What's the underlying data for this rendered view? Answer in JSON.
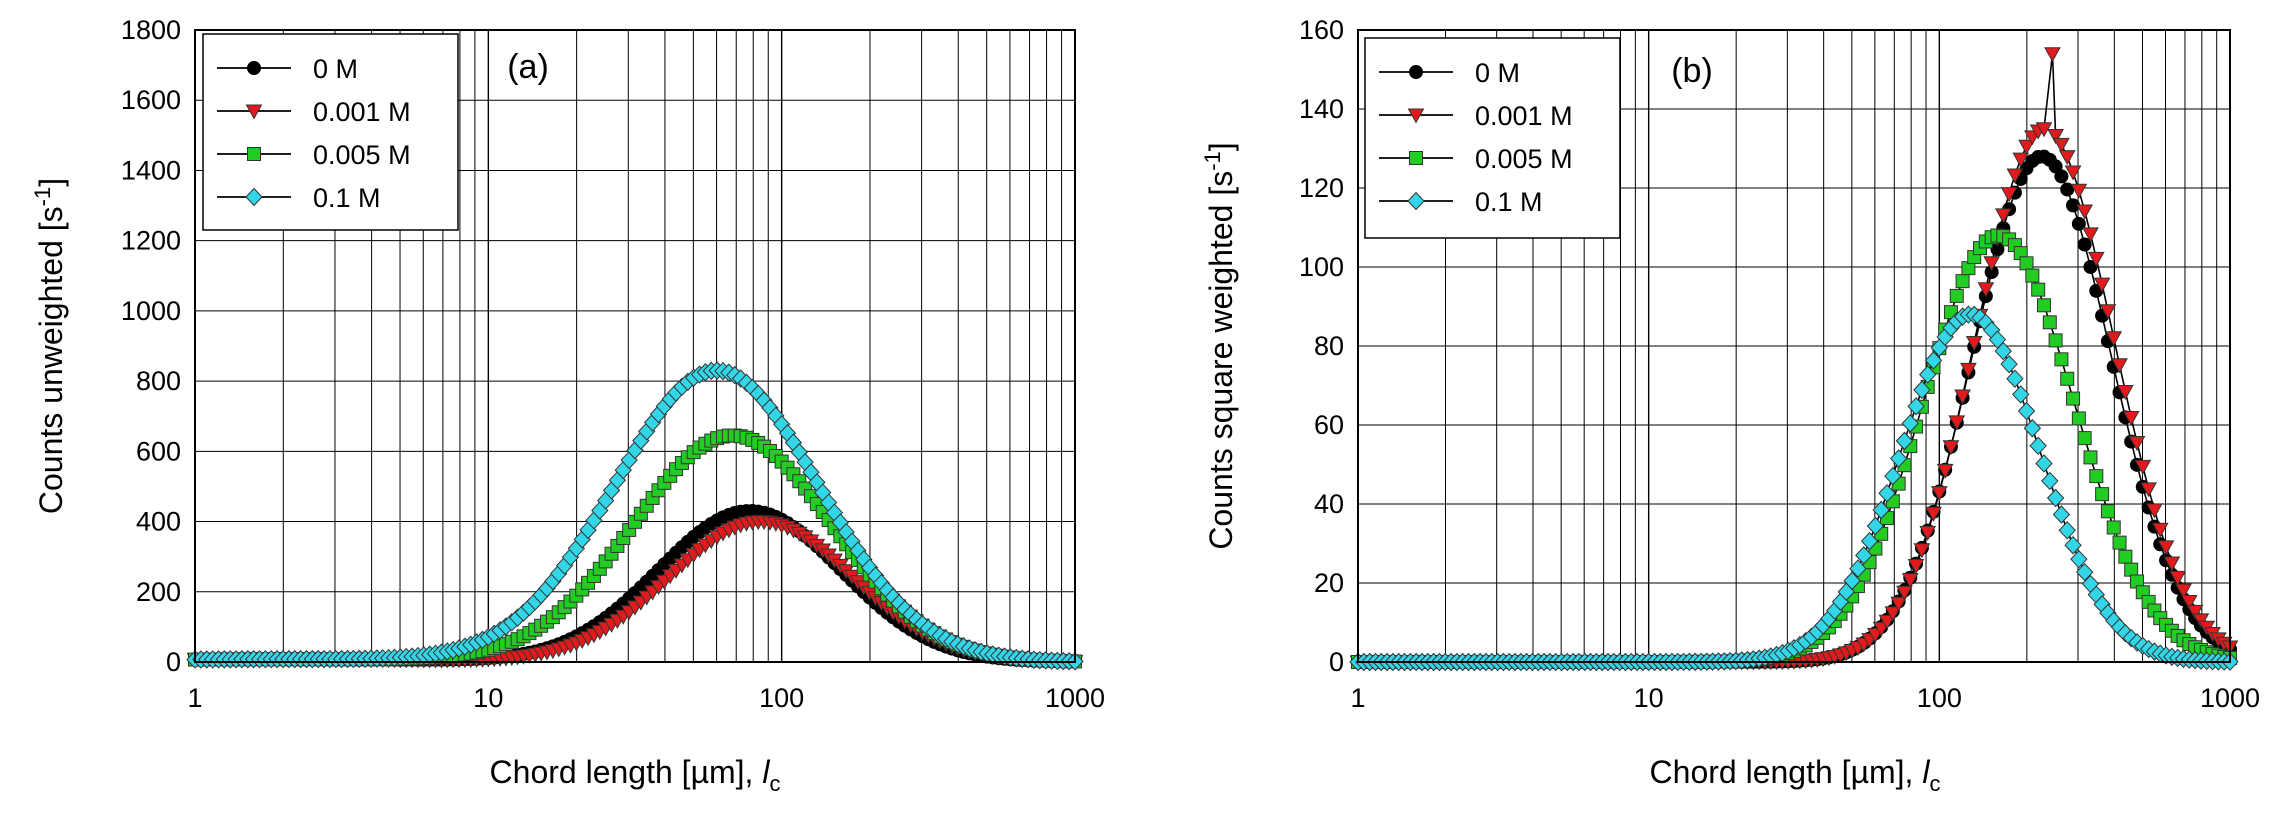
{
  "chart_data": [
    {
      "type": "scatter",
      "panel_label": "(a)",
      "x_scale": "log",
      "xlim": [
        1,
        1000
      ],
      "ylim": [
        0,
        1800
      ],
      "y_ticks": [
        0,
        200,
        400,
        600,
        800,
        1000,
        1200,
        1400,
        1600,
        1800
      ],
      "x_ticks": [
        1,
        10,
        100,
        1000
      ],
      "x_tick_labels": [
        "1",
        "10",
        "100",
        "1000"
      ],
      "xlabel": "Chord length [µm], ",
      "xlabel_italic": "l",
      "xlabel_sub": "c",
      "ylabel": "Counts unweighted [s",
      "ylabel_sup": "-1",
      "ylabel_end": "]",
      "grid": true,
      "legend_position": "top-left",
      "series": [
        {
          "name": "0 M",
          "color": "#000000",
          "marker": "circle",
          "lognormal": {
            "peak": 430,
            "mode": 78,
            "sigma": 0.72
          }
        },
        {
          "name": "0.001 M",
          "color": "#e31a1c",
          "marker": "triangle-down",
          "lognormal": {
            "peak": 400,
            "mode": 85,
            "sigma": 0.72
          }
        },
        {
          "name": "0.005 M",
          "color": "#22cc22",
          "marker": "square",
          "lognormal": {
            "peak": 645,
            "mode": 68,
            "sigma": 0.78
          }
        },
        {
          "name": "0.1 M",
          "color": "#33d6e6",
          "marker": "diamond",
          "lognormal": {
            "peak": 830,
            "mode": 60,
            "sigma": 0.8
          }
        }
      ]
    },
    {
      "type": "scatter",
      "panel_label": "(b)",
      "x_scale": "log",
      "xlim": [
        1,
        1000
      ],
      "ylim": [
        0,
        160
      ],
      "y_ticks": [
        0,
        20,
        40,
        60,
        80,
        100,
        120,
        140,
        160
      ],
      "x_ticks": [
        1,
        10,
        100,
        1000
      ],
      "x_tick_labels": [
        "1",
        "10",
        "100",
        "1000"
      ],
      "xlabel": "Chord length [µm], ",
      "xlabel_italic": "l",
      "xlabel_sub": "c",
      "ylabel": "Counts square weighted [s",
      "ylabel_sup": "-1",
      "ylabel_end": "]",
      "grid": true,
      "legend_position": "top-left",
      "series": [
        {
          "name": "0 M",
          "color": "#000000",
          "marker": "circle",
          "lognormal": {
            "peak": 128,
            "mode": 225,
            "sigma": 0.55
          }
        },
        {
          "name": "0.001 M",
          "color": "#e31a1c",
          "marker": "triangle-down",
          "lognormal": {
            "peak": 135,
            "mode": 230,
            "sigma": 0.55
          },
          "spike": {
            "x": 245,
            "y": 154
          }
        },
        {
          "name": "0.005 M",
          "color": "#22cc22",
          "marker": "square",
          "lognormal": {
            "peak": 108,
            "mode": 160,
            "sigma": 0.6
          }
        },
        {
          "name": "0.1 M",
          "color": "#33d6e6",
          "marker": "diamond",
          "lognormal": {
            "peak": 88,
            "mode": 128,
            "sigma": 0.55
          }
        }
      ]
    }
  ]
}
